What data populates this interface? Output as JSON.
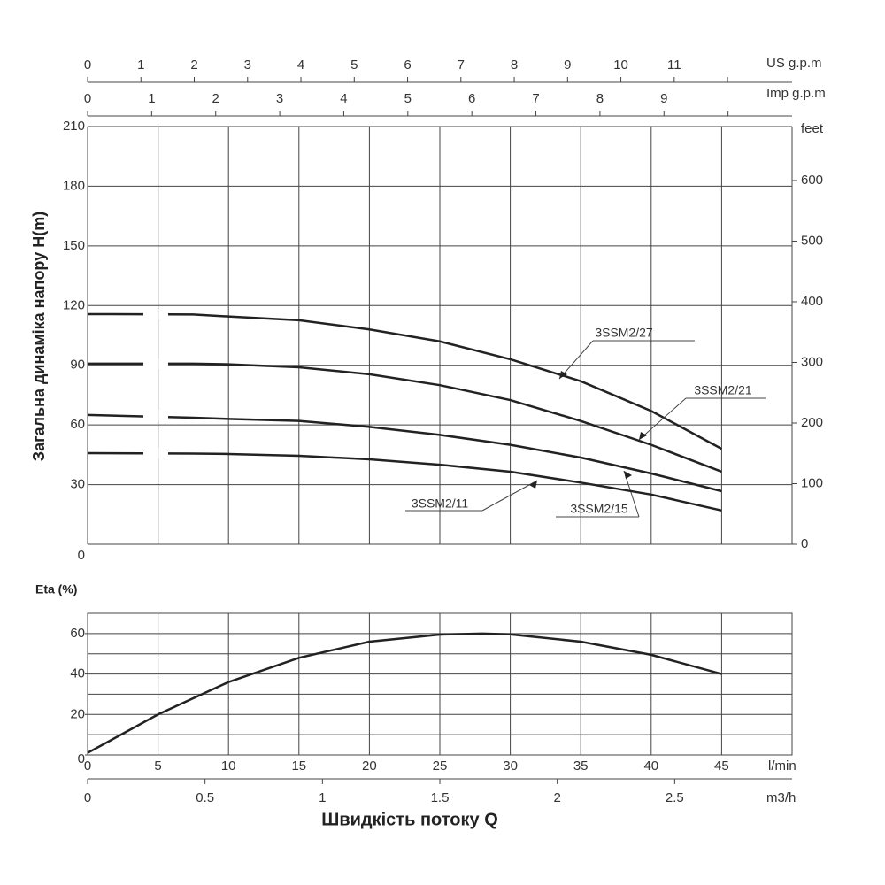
{
  "chart_data": [
    {
      "type": "line",
      "ylabel": "Загальна динаміка напору H(m)",
      "x": [
        0,
        7.5,
        10,
        15,
        20,
        25,
        30,
        35,
        40,
        45
      ],
      "xlim": [
        0,
        50
      ],
      "xticks": [
        0,
        5,
        10,
        15,
        20,
        25,
        30,
        35,
        40,
        45,
        50
      ],
      "ylim": [
        0,
        210
      ],
      "yticks": [
        0,
        30,
        60,
        90,
        120,
        150,
        180,
        210
      ],
      "y2label": "feet",
      "y2lim": [
        0,
        689
      ],
      "y2ticks": [
        0,
        100,
        200,
        300,
        400,
        500,
        600
      ],
      "dashed_xlim": [
        0,
        7.5
      ],
      "top_axes": [
        {
          "label": "US g.p.m",
          "lim": [
            0,
            13.21
          ],
          "ticks": [
            0,
            1,
            2,
            3,
            4,
            5,
            6,
            7,
            8,
            9,
            10,
            11,
            {
              "value": 12,
              "label": null
            }
          ]
        },
        {
          "label": "Imp g.p.m",
          "lim": [
            0,
            11.0
          ],
          "ticks": [
            0,
            1,
            2,
            3,
            4,
            5,
            6,
            7,
            8,
            9,
            {
              "value": 10,
              "label": null
            }
          ]
        }
      ],
      "series": [
        {
          "name": "3SSM2/27",
          "color": "#222222",
          "values": [
            115.7,
            115.5,
            114.5,
            112.6,
            108,
            102,
            93,
            82,
            67,
            48
          ]
        },
        {
          "name": "3SSM2/21",
          "color": "#222222",
          "values": [
            90.8,
            90.8,
            90.5,
            89,
            85.5,
            80,
            72.5,
            62,
            50,
            36.5
          ]
        },
        {
          "name": "3SSM2/15",
          "color": "#222222",
          "values": [
            65,
            63.6,
            63,
            62,
            59,
            55,
            50,
            43.6,
            35.6,
            26.7
          ]
        },
        {
          "name": "3SSM2/11",
          "color": "#222222",
          "values": [
            45.8,
            45.6,
            45.4,
            44.5,
            42.7,
            40,
            36.5,
            31,
            25,
            17
          ]
        }
      ]
    },
    {
      "type": "line",
      "ylabel": "Eta (%)",
      "xlabel": "l/min",
      "x2label": "m3/h",
      "title": "Швидкість потоку Q",
      "x": [
        0,
        5,
        10,
        15,
        20,
        25,
        28,
        30,
        35,
        40,
        45
      ],
      "xlim": [
        0,
        50
      ],
      "xticks": [
        0,
        5,
        10,
        15,
        20,
        25,
        30,
        35,
        40,
        45
      ],
      "x2lim": [
        0,
        3
      ],
      "x2ticks": [
        0,
        0.5,
        1,
        1.5,
        2,
        2.5
      ],
      "ylim": [
        0,
        70
      ],
      "yticks": [
        0,
        20,
        40,
        60
      ],
      "ygrid": [
        0,
        10,
        20,
        30,
        40,
        50,
        60,
        70
      ],
      "series": [
        {
          "color": "#222222",
          "values": [
            1,
            20,
            36,
            48,
            56,
            59.5,
            60,
            59.6,
            56,
            49.5,
            40
          ]
        }
      ]
    }
  ]
}
